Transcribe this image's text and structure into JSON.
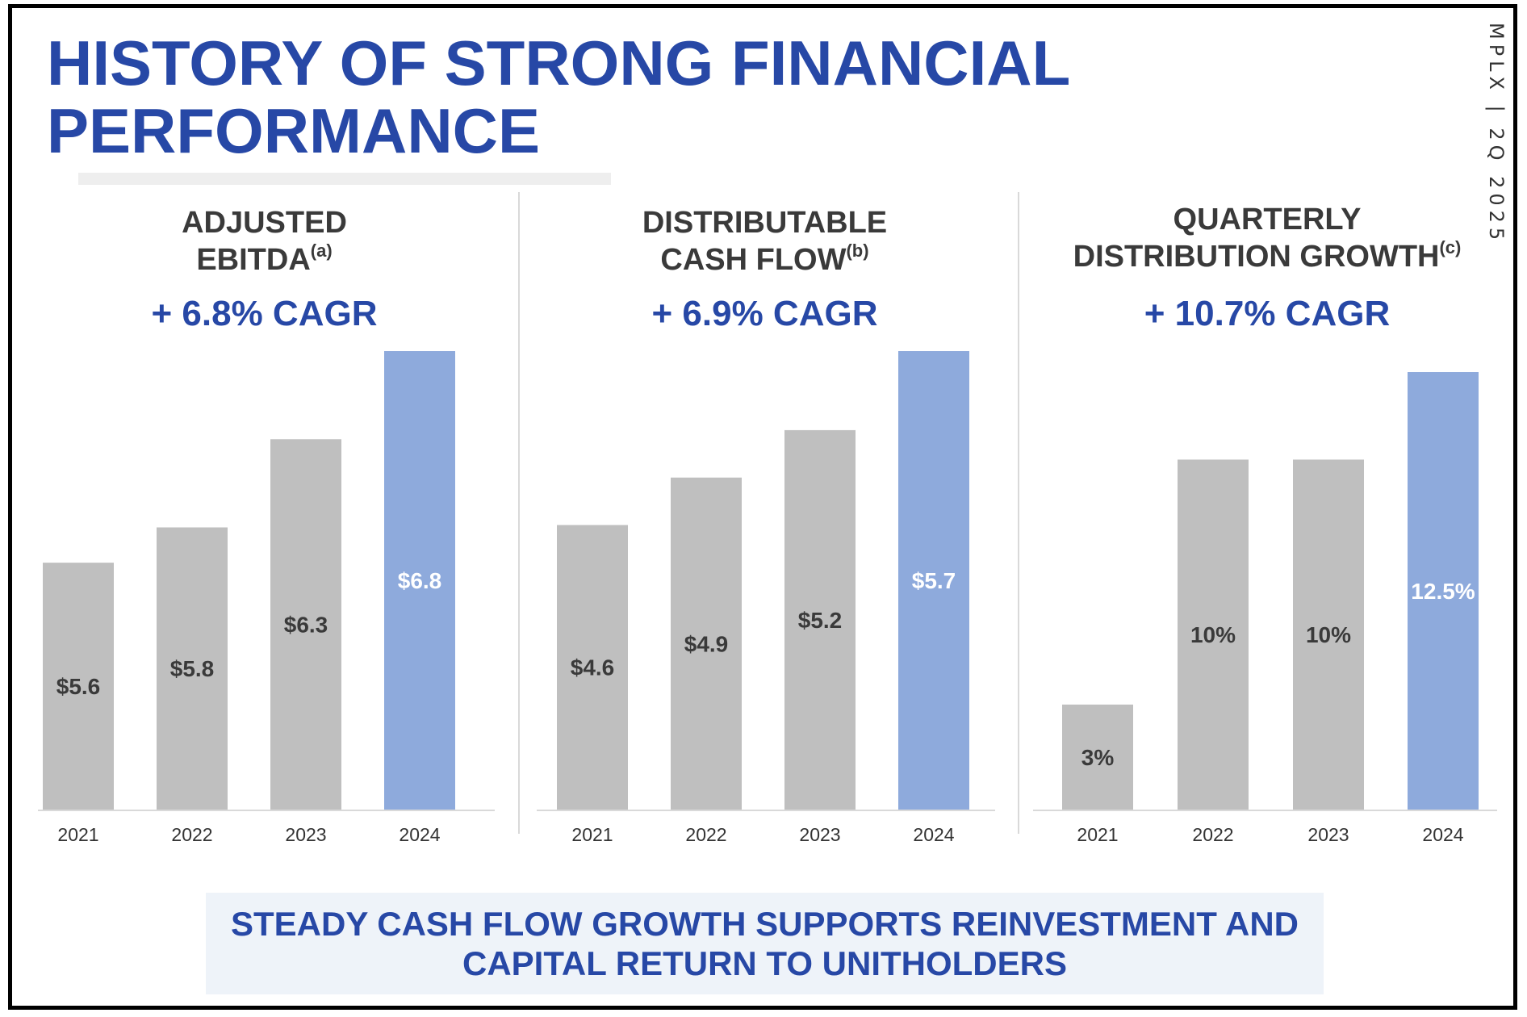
{
  "header": {
    "title_line1": "HISTORY OF STRONG FINANCIAL",
    "title_line2": "PERFORMANCE",
    "side_tag": "MPLX | 2Q 2025"
  },
  "panels": [
    {
      "title_line1": "ADJUSTED",
      "title_line2": "EBITDA",
      "footnote": "(a)",
      "cagr": "+ 6.8% CAGR"
    },
    {
      "title_line1": "DISTRIBUTABLE",
      "title_line2": "CASH FLOW",
      "footnote": "(b)",
      "cagr": "+ 6.9% CAGR"
    },
    {
      "title_line1": "QUARTERLY",
      "title_line2": "DISTRIBUTION GROWTH",
      "footnote": "(c)",
      "cagr": "+ 10.7% CAGR"
    }
  ],
  "callout": {
    "line1": "STEADY CASH FLOW GROWTH SUPPORTS REINVESTMENT AND",
    "line2": "CAPITAL RETURN TO UNITHOLDERS"
  },
  "colors": {
    "title_blue": "#2748a6",
    "bar_gray": "#bfbfbf",
    "bar_highlight": "#8eaadc",
    "label_dark": "#3a3a3a",
    "label_light": "#ffffff",
    "axis": "#d9d9d9"
  },
  "chart_data": [
    {
      "type": "bar",
      "title": "ADJUSTED EBITDA(a)",
      "subtitle": "+ 6.8% CAGR",
      "categories": [
        "2021",
        "2022",
        "2023",
        "2024"
      ],
      "values": [
        5.6,
        5.8,
        6.3,
        6.8
      ],
      "labels": [
        "$5.6",
        "$5.8",
        "$6.3",
        "$6.8"
      ],
      "highlight_index": 3,
      "ylim": [
        4.2,
        6.8
      ],
      "xlabel": "",
      "ylabel": ""
    },
    {
      "type": "bar",
      "title": "DISTRIBUTABLE CASH FLOW(b)",
      "subtitle": "+ 6.9% CAGR",
      "categories": [
        "2021",
        "2022",
        "2023",
        "2024"
      ],
      "values": [
        4.6,
        4.9,
        5.2,
        5.7
      ],
      "labels": [
        "$4.6",
        "$4.9",
        "$5.2",
        "$5.7"
      ],
      "highlight_index": 3,
      "ylim": [
        2.8,
        5.7
      ],
      "xlabel": "",
      "ylabel": ""
    },
    {
      "type": "bar",
      "title": "QUARTERLY DISTRIBUTION GROWTH(c)",
      "subtitle": "+ 10.7% CAGR",
      "categories": [
        "2021",
        "2022",
        "2023",
        "2024"
      ],
      "values": [
        3,
        10,
        10,
        12.5
      ],
      "labels": [
        "3%",
        "10%",
        "10%",
        "12.5%"
      ],
      "highlight_index": 3,
      "ylim": [
        0,
        13.1
      ],
      "xlabel": "",
      "ylabel": ""
    }
  ]
}
